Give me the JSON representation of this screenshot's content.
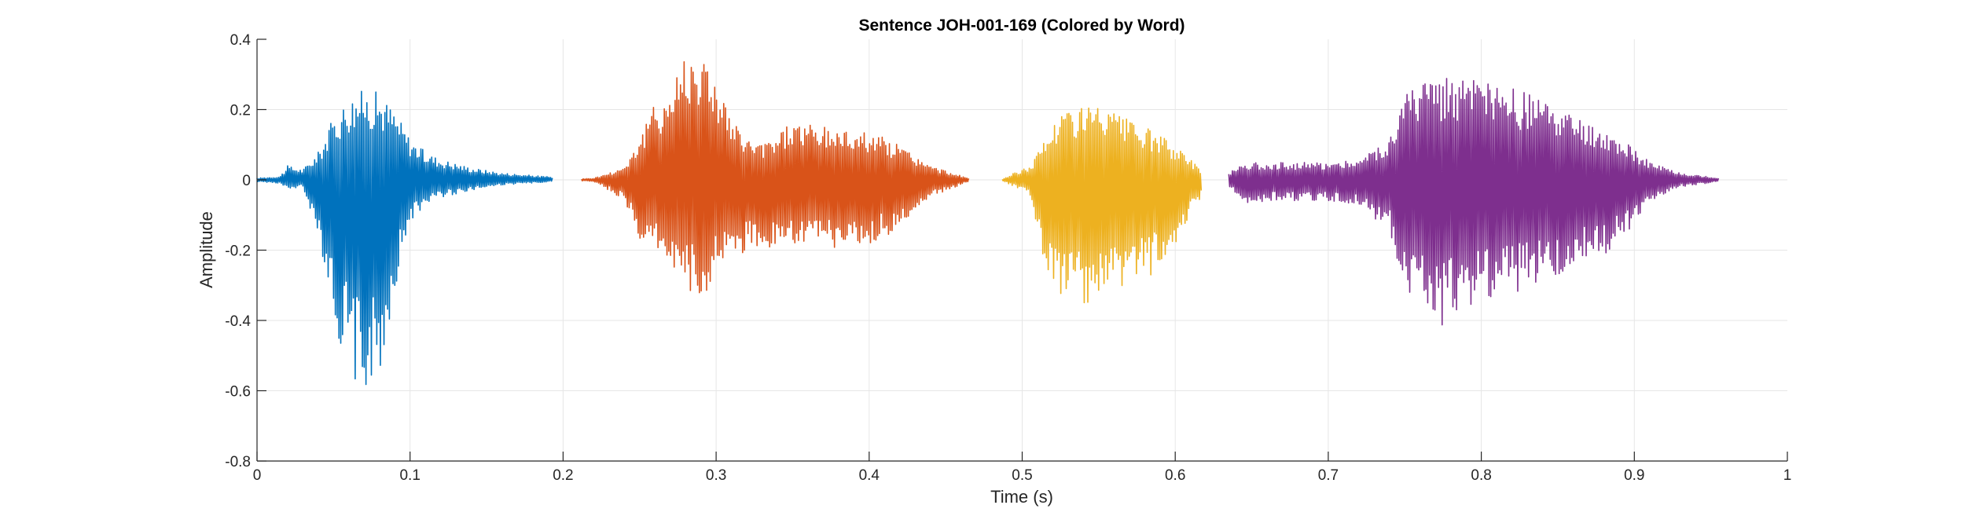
{
  "chart_data": {
    "type": "line",
    "title": "Sentence JOH-001-169 (Colored by Word)",
    "xlabel": "Time (s)",
    "ylabel": "Amplitude",
    "xlim": [
      0,
      1
    ],
    "ylim": [
      -0.8,
      0.4
    ],
    "x_ticks": [
      0,
      0.1,
      0.2,
      0.3,
      0.4,
      0.5,
      0.6,
      0.7,
      0.8,
      0.9,
      1
    ],
    "x_tick_labels": [
      "0",
      "0.1",
      "0.2",
      "0.3",
      "0.4",
      "0.5",
      "0.6",
      "0.7",
      "0.8",
      "0.9",
      "1"
    ],
    "y_ticks": [
      0.4,
      0.2,
      0,
      -0.2,
      -0.4,
      -0.6,
      -0.8
    ],
    "y_tick_labels": [
      "0.4",
      "0.2",
      "0",
      "-0.2",
      "-0.4",
      "-0.6",
      "-0.8"
    ],
    "grid": true,
    "legend": "none",
    "series": [
      {
        "color": "#0072BD",
        "t_start": 0.0,
        "t_end": 0.193,
        "envelope": [
          [
            0.0,
            0.005,
            -0.005
          ],
          [
            0.015,
            0.01,
            -0.01
          ],
          [
            0.02,
            0.04,
            -0.03
          ],
          [
            0.03,
            0.03,
            -0.02
          ],
          [
            0.04,
            0.08,
            -0.15
          ],
          [
            0.05,
            0.18,
            -0.4
          ],
          [
            0.06,
            0.24,
            -0.55
          ],
          [
            0.07,
            0.26,
            -0.62
          ],
          [
            0.08,
            0.25,
            -0.58
          ],
          [
            0.09,
            0.2,
            -0.32
          ],
          [
            0.1,
            0.12,
            -0.12
          ],
          [
            0.11,
            0.08,
            -0.07
          ],
          [
            0.12,
            0.06,
            -0.05
          ],
          [
            0.14,
            0.035,
            -0.03
          ],
          [
            0.16,
            0.02,
            -0.015
          ],
          [
            0.193,
            0.008,
            -0.005
          ]
        ]
      },
      {
        "color": "#D95319",
        "t_start": 0.212,
        "t_end": 0.465,
        "envelope": [
          [
            0.212,
            0.003,
            -0.003
          ],
          [
            0.22,
            0.005,
            -0.005
          ],
          [
            0.23,
            0.02,
            -0.03
          ],
          [
            0.24,
            0.04,
            -0.06
          ],
          [
            0.25,
            0.12,
            -0.18
          ],
          [
            0.26,
            0.22,
            -0.2
          ],
          [
            0.27,
            0.26,
            -0.24
          ],
          [
            0.28,
            0.38,
            -0.3
          ],
          [
            0.29,
            0.37,
            -0.37
          ],
          [
            0.3,
            0.3,
            -0.27
          ],
          [
            0.31,
            0.17,
            -0.23
          ],
          [
            0.32,
            0.12,
            -0.2
          ],
          [
            0.33,
            0.1,
            -0.2
          ],
          [
            0.35,
            0.17,
            -0.2
          ],
          [
            0.37,
            0.15,
            -0.2
          ],
          [
            0.4,
            0.14,
            -0.19
          ],
          [
            0.42,
            0.1,
            -0.14
          ],
          [
            0.44,
            0.04,
            -0.05
          ],
          [
            0.465,
            0.005,
            -0.005
          ]
        ]
      },
      {
        "color": "#EDB120",
        "t_start": 0.487,
        "t_end": 0.617,
        "envelope": [
          [
            0.487,
            0.002,
            -0.002
          ],
          [
            0.495,
            0.02,
            -0.02
          ],
          [
            0.505,
            0.04,
            -0.04
          ],
          [
            0.515,
            0.12,
            -0.25
          ],
          [
            0.525,
            0.2,
            -0.33
          ],
          [
            0.54,
            0.22,
            -0.37
          ],
          [
            0.555,
            0.2,
            -0.36
          ],
          [
            0.57,
            0.17,
            -0.31
          ],
          [
            0.585,
            0.14,
            -0.27
          ],
          [
            0.6,
            0.1,
            -0.18
          ],
          [
            0.61,
            0.06,
            -0.1
          ],
          [
            0.617,
            0.03,
            -0.05
          ]
        ]
      },
      {
        "color": "#7E2F8E",
        "t_start": 0.635,
        "t_end": 0.955,
        "envelope": [
          [
            0.635,
            0.02,
            -0.02
          ],
          [
            0.645,
            0.05,
            -0.07
          ],
          [
            0.66,
            0.05,
            -0.06
          ],
          [
            0.7,
            0.05,
            -0.06
          ],
          [
            0.72,
            0.06,
            -0.07
          ],
          [
            0.74,
            0.12,
            -0.15
          ],
          [
            0.75,
            0.25,
            -0.3
          ],
          [
            0.76,
            0.28,
            -0.38
          ],
          [
            0.77,
            0.3,
            -0.43
          ],
          [
            0.78,
            0.3,
            -0.4
          ],
          [
            0.8,
            0.28,
            -0.36
          ],
          [
            0.82,
            0.26,
            -0.33
          ],
          [
            0.84,
            0.23,
            -0.3
          ],
          [
            0.86,
            0.18,
            -0.25
          ],
          [
            0.88,
            0.14,
            -0.22
          ],
          [
            0.9,
            0.09,
            -0.13
          ],
          [
            0.91,
            0.05,
            -0.06
          ],
          [
            0.93,
            0.02,
            -0.02
          ],
          [
            0.955,
            0.005,
            -0.005
          ]
        ]
      }
    ]
  }
}
